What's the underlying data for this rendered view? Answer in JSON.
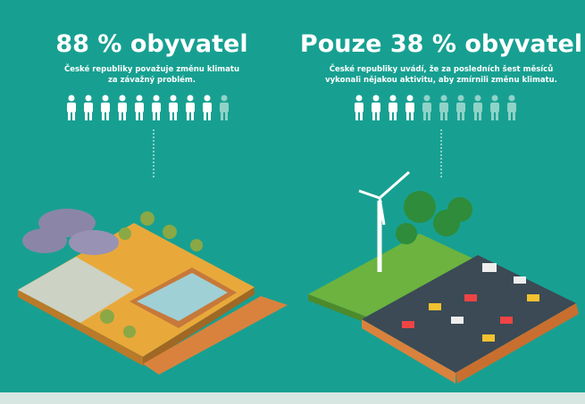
{
  "left": {
    "headline": "88 % obyvatel",
    "lines": [
      "České republiky považuje změnu klimatu",
      "za závažný problém."
    ],
    "pictogram": {
      "filled": 9,
      "total": 10
    }
  },
  "right": {
    "headline": "Pouze 38 % obyvatel",
    "lines": [
      "České republiky uvádí, že za posledních šest měsíců",
      "vykonali nějakou aktivitu, aby zmírnili změnu klimatu."
    ],
    "pictogram": {
      "filled": 4,
      "total": 10
    }
  }
}
